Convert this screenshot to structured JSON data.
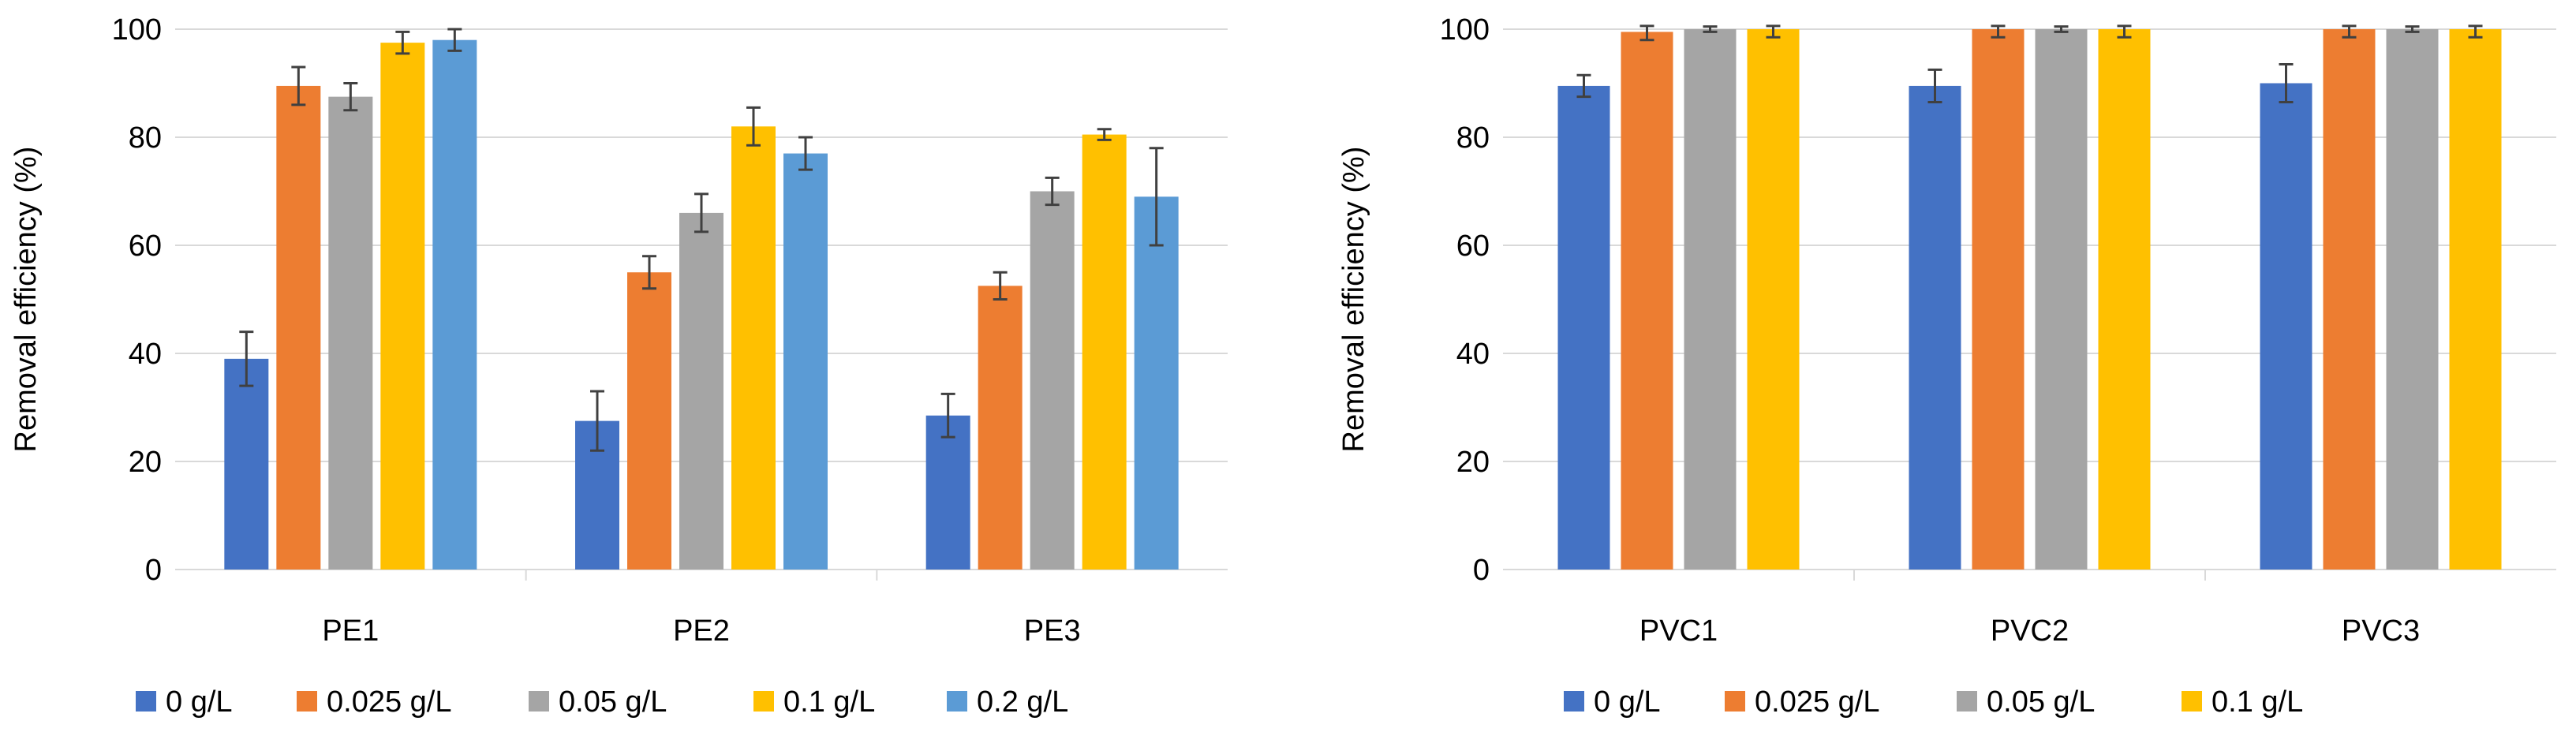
{
  "chart_data": [
    {
      "type": "bar",
      "title": "",
      "xlabel": "",
      "ylabel": "Removal efficiency (%)",
      "ylim": [
        0,
        100
      ],
      "yticks": [
        "0",
        "20",
        "40",
        "60",
        "80",
        "100"
      ],
      "ytick_values": [
        0,
        20,
        40,
        60,
        80,
        100
      ],
      "grid": true,
      "legend_position": "bottom",
      "categories": [
        "PE1",
        "PE2",
        "PE3"
      ],
      "series": [
        {
          "name": "0 g/L",
          "color": "#4472C4",
          "values": [
            39,
            27.5,
            28.5
          ],
          "errors": [
            5,
            5.5,
            4
          ]
        },
        {
          "name": "0.025 g/L",
          "color": "#ED7D31",
          "values": [
            89.5,
            55,
            52.5
          ],
          "errors": [
            3.5,
            3,
            2.5
          ]
        },
        {
          "name": "0.05 g/L",
          "color": "#A5A5A5",
          "values": [
            87.5,
            66,
            70
          ],
          "errors": [
            2.5,
            3.5,
            2.5
          ]
        },
        {
          "name": "0.1 g/L",
          "color": "#FFC000",
          "values": [
            97.5,
            82,
            80.5
          ],
          "errors": [
            2,
            3.5,
            1
          ]
        },
        {
          "name": "0.2 g/L",
          "color": "#5B9BD5",
          "values": [
            98,
            77,
            69
          ],
          "errors": [
            2,
            3,
            9
          ]
        }
      ]
    },
    {
      "type": "bar",
      "title": "",
      "xlabel": "",
      "ylabel": "Removal efficiency (%)",
      "ylim": [
        0,
        100
      ],
      "yticks": [
        "0",
        "20",
        "40",
        "60",
        "80",
        "100"
      ],
      "ytick_values": [
        0,
        20,
        40,
        60,
        80,
        100
      ],
      "grid": true,
      "legend_position": "bottom",
      "categories": [
        "PVC1",
        "PVC2",
        "PVC3"
      ],
      "series": [
        {
          "name": "0 g/L",
          "color": "#4472C4",
          "values": [
            89.5,
            89.5,
            90
          ],
          "errors": [
            2,
            3,
            3.5
          ]
        },
        {
          "name": "0.025 g/L",
          "color": "#ED7D31",
          "values": [
            99.5,
            100,
            100
          ],
          "errors": [
            1.5,
            1.5,
            1.5
          ]
        },
        {
          "name": "0.05 g/L",
          "color": "#A5A5A5",
          "values": [
            100,
            100,
            100
          ],
          "errors": [
            0.5,
            0.5,
            0.5
          ]
        },
        {
          "name": "0.1 g/L",
          "color": "#FFC000",
          "values": [
            100,
            100,
            100
          ],
          "errors": [
            1.5,
            1.5,
            1.5
          ]
        }
      ]
    }
  ]
}
